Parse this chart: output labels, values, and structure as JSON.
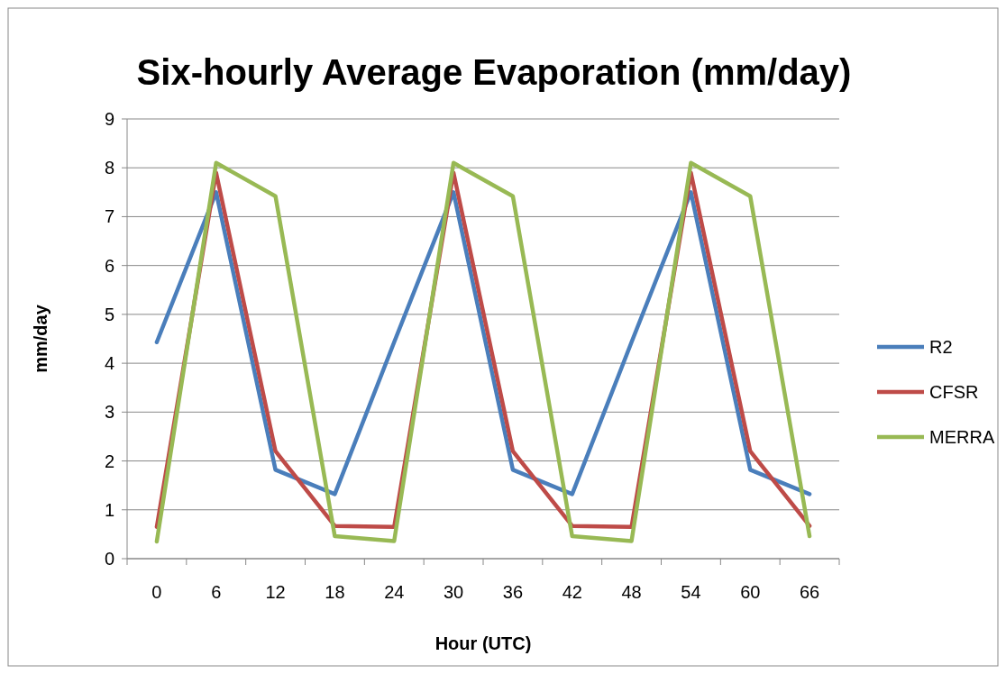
{
  "chart_data": {
    "type": "line",
    "title": "Six-hourly Average Evaporation (mm/day)",
    "xlabel": "Hour (UTC)",
    "ylabel": "mm/day",
    "categories": [
      "0",
      "6",
      "12",
      "18",
      "24",
      "30",
      "36",
      "42",
      "48",
      "54",
      "60",
      "66"
    ],
    "series": [
      {
        "name": "R2",
        "color": "#4a7ebb",
        "values": [
          4.43,
          7.5,
          1.82,
          1.32,
          4.43,
          7.5,
          1.82,
          1.32,
          4.43,
          7.5,
          1.82,
          1.32
        ]
      },
      {
        "name": "CFSR",
        "color": "#be4b48",
        "values": [
          0.65,
          7.9,
          2.2,
          0.67,
          0.65,
          7.9,
          2.2,
          0.67,
          0.65,
          7.9,
          2.2,
          0.67
        ]
      },
      {
        "name": "MERRA",
        "color": "#98b954",
        "values": [
          0.35,
          8.1,
          7.42,
          0.46,
          0.36,
          8.1,
          7.42,
          0.46,
          0.36,
          8.1,
          7.42,
          0.46
        ]
      }
    ],
    "ylim": [
      0,
      9
    ],
    "yticks": [
      0,
      1,
      2,
      3,
      4,
      5,
      6,
      7,
      8,
      9
    ],
    "grid": "y",
    "legend": "right",
    "marker": "none",
    "line_style": "solid"
  }
}
